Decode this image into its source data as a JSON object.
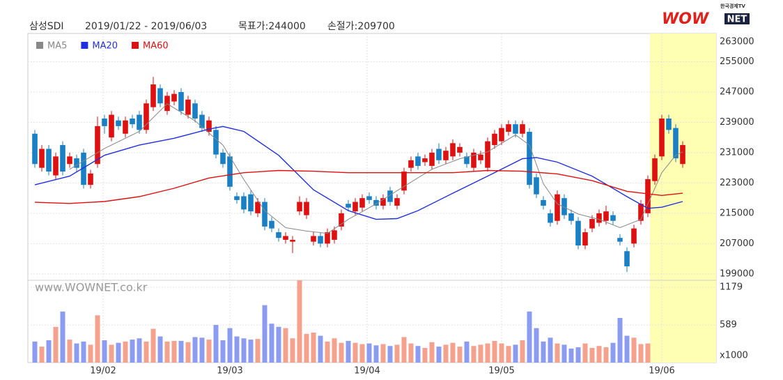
{
  "chart_data": {
    "type": "candlestick",
    "header": {
      "name": "삼성SDI",
      "period": "2019/01/22 - 2019/06/03",
      "target": "목표가:244000",
      "stop": "손절가:209700"
    },
    "logo": {
      "tag": "한국경제TV",
      "wow": "WOW",
      "net": "NET"
    },
    "watermark": "www.WOWNET.co.kr",
    "grid": true,
    "up_color": "#dd1111",
    "down_color": "#1b7fc4",
    "volume_up_color": "#f4a28e",
    "volume_down_color": "#8c9cf0",
    "highlight_color": "#ffffb4",
    "highlight_from": 88.3,
    "xlim": [
      0,
      93
    ],
    "xticks": [
      {
        "value": 9.8,
        "label": "19/02"
      },
      {
        "value": 28,
        "label": "19/03"
      },
      {
        "value": 47.7,
        "label": "19/04"
      },
      {
        "value": 67,
        "label": "19/05"
      },
      {
        "value": 90,
        "label": "19/06"
      }
    ],
    "ylim": [
      197500,
      263000
    ],
    "yticks": [
      199000,
      207000,
      215000,
      223000,
      231000,
      239000,
      247000,
      255000,
      263000
    ],
    "open": [
      236000,
      227000,
      232000,
      225000,
      233000,
      228000,
      229500,
      231000,
      222500,
      228000,
      240000,
      235000,
      239500,
      236000,
      240000,
      241000,
      237000,
      243000,
      248000,
      242000,
      244500,
      247000,
      241000,
      244000,
      241000,
      236500,
      237000,
      231000,
      230000,
      219500,
      219500,
      220000,
      215000,
      218000,
      213000,
      210000,
      208000,
      207500,
      215500,
      214500,
      207500,
      209000,
      207000,
      208000,
      211500,
      217500,
      215500,
      216500,
      219500,
      218500,
      217000,
      221000,
      217000,
      221000,
      227000,
      230000,
      228500,
      227500,
      232000,
      229000,
      230000,
      231000,
      230000,
      227000,
      229000,
      227000,
      233000,
      234000,
      236500,
      238500,
      236000,
      236500,
      224500,
      218500,
      215000,
      213000,
      219000,
      215000,
      213000,
      206500,
      211000,
      212500,
      213000,
      214500,
      208500,
      205000,
      207000,
      213000,
      215000,
      223500,
      230000,
      240000,
      237500,
      228000
    ],
    "high": [
      237000,
      233000,
      233000,
      231000,
      234000,
      231000,
      230500,
      232000,
      226500,
      240500,
      241000,
      242000,
      240500,
      240500,
      241000,
      242000,
      245000,
      251000,
      249000,
      247000,
      247500,
      248000,
      246000,
      245000,
      242000,
      240500,
      238000,
      232000,
      231000,
      220500,
      220500,
      221000,
      219000,
      219000,
      214000,
      211000,
      210000,
      209000,
      219500,
      219000,
      210000,
      210000,
      211000,
      211500,
      216000,
      218500,
      219000,
      220000,
      220500,
      219500,
      220000,
      222000,
      220000,
      227000,
      230000,
      231000,
      230500,
      232000,
      233500,
      232500,
      234500,
      233500,
      231000,
      232000,
      231500,
      235000,
      237000,
      238500,
      239500,
      239500,
      239500,
      237500,
      225500,
      219500,
      216000,
      221000,
      220000,
      216000,
      214000,
      211000,
      214500,
      216000,
      217000,
      215500,
      209500,
      206000,
      212000,
      218500,
      225000,
      230500,
      241000,
      241000,
      238500,
      234000
    ],
    "low": [
      227000,
      226000,
      225000,
      224000,
      225000,
      227000,
      226000,
      221500,
      221500,
      227000,
      236000,
      234000,
      237000,
      235000,
      237500,
      236000,
      236000,
      242000,
      243000,
      241000,
      243500,
      241000,
      240000,
      239000,
      236500,
      235500,
      229500,
      227000,
      221000,
      217500,
      215000,
      214500,
      214000,
      210500,
      210000,
      207500,
      207000,
      204500,
      214500,
      213500,
      206500,
      206000,
      206000,
      207000,
      210500,
      215500,
      214500,
      215500,
      217500,
      216000,
      216000,
      217000,
      216000,
      220000,
      226000,
      226500,
      227500,
      226500,
      228000,
      228000,
      229000,
      230000,
      227000,
      226000,
      228000,
      226000,
      232000,
      233000,
      235500,
      235000,
      235000,
      221500,
      219000,
      216000,
      211500,
      212000,
      213500,
      212000,
      205500,
      205500,
      210000,
      211500,
      212000,
      212000,
      206500,
      199500,
      206000,
      212000,
      214000,
      222500,
      229000,
      236000,
      228500,
      227000
    ],
    "close": [
      228000,
      232000,
      226000,
      230000,
      226000,
      230000,
      227000,
      222500,
      225500,
      238000,
      238000,
      241000,
      238000,
      239500,
      238500,
      237000,
      244000,
      249000,
      244000,
      246000,
      246500,
      242000,
      245000,
      240000,
      237500,
      239500,
      230500,
      228000,
      222000,
      218500,
      216000,
      215500,
      218000,
      211500,
      211000,
      208500,
      209000,
      208000,
      218000,
      218000,
      209000,
      207000,
      210000,
      210500,
      215000,
      216500,
      218000,
      219000,
      218500,
      217000,
      219000,
      218000,
      219000,
      226000,
      229000,
      227500,
      229500,
      231000,
      229000,
      231500,
      233500,
      232500,
      228000,
      231000,
      230500,
      234000,
      236000,
      237500,
      238500,
      236000,
      238500,
      222500,
      220000,
      217000,
      212500,
      220000,
      214500,
      213000,
      206500,
      210000,
      213500,
      215000,
      215500,
      213000,
      207500,
      201000,
      211000,
      217500,
      224000,
      229500,
      240000,
      237000,
      229500,
      233000
    ],
    "series": [
      {
        "name": "MA5",
        "color": "#888888",
        "x": [
          5,
          10,
          15,
          19,
          23,
          27,
          30,
          33,
          36,
          39,
          42,
          45,
          49,
          53,
          57,
          61,
          65,
          69,
          71,
          73,
          75,
          78,
          81,
          84,
          87,
          90,
          92,
          93
        ],
        "values": [
          226600,
          232100,
          236600,
          243900,
          239400,
          233000,
          223900,
          215700,
          211200,
          210300,
          209700,
          213400,
          217500,
          222100,
          226600,
          229400,
          231200,
          235700,
          233000,
          222800,
          217500,
          214800,
          213400,
          211200,
          213400,
          225700,
          230300,
          231200
        ]
      },
      {
        "name": "MA20",
        "color": "#2030e0",
        "x": [
          0,
          5,
          10,
          15,
          20,
          25,
          27,
          30,
          35,
          40,
          45,
          49,
          52,
          55,
          60,
          65,
          70,
          72,
          75,
          80,
          85,
          88,
          90,
          93
        ],
        "values": [
          222500,
          224800,
          230300,
          233000,
          234800,
          237200,
          237900,
          236600,
          230300,
          221200,
          215700,
          213400,
          213600,
          215700,
          220300,
          224800,
          229400,
          229700,
          228500,
          224800,
          219400,
          216300,
          216600,
          218100
        ]
      },
      {
        "name": "MA60",
        "color": "#dd1111",
        "x": [
          0,
          5,
          10,
          15,
          20,
          25,
          30,
          35,
          40,
          45,
          50,
          55,
          60,
          65,
          70,
          75,
          80,
          85,
          90,
          93
        ],
        "values": [
          217900,
          217600,
          218100,
          219400,
          221600,
          224300,
          225700,
          226300,
          226100,
          225700,
          225700,
          225700,
          225700,
          226300,
          226100,
          225400,
          223600,
          220800,
          219700,
          220300
        ]
      }
    ],
    "volume": {
      "unit_label": "x1000",
      "ylim": [
        0,
        1290
      ],
      "yticks": [
        589,
        1179
      ],
      "values": [
        330,
        250,
        350,
        560,
        800,
        360,
        300,
        330,
        280,
        740,
        350,
        280,
        310,
        330,
        360,
        380,
        330,
        530,
        410,
        330,
        340,
        340,
        320,
        400,
        390,
        360,
        590,
        350,
        540,
        410,
        380,
        360,
        370,
        900,
        610,
        560,
        540,
        380,
        1290,
        450,
        470,
        420,
        330,
        380,
        310,
        340,
        310,
        290,
        300,
        270,
        290,
        260,
        280,
        400,
        300,
        260,
        230,
        320,
        250,
        280,
        310,
        250,
        330,
        260,
        280,
        300,
        340,
        300,
        260,
        280,
        350,
        800,
        540,
        330,
        390,
        300,
        280,
        220,
        240,
        300,
        230,
        260,
        240,
        310,
        700,
        420,
        390,
        290,
        300,
        null,
        null,
        null,
        null,
        null
      ]
    }
  }
}
